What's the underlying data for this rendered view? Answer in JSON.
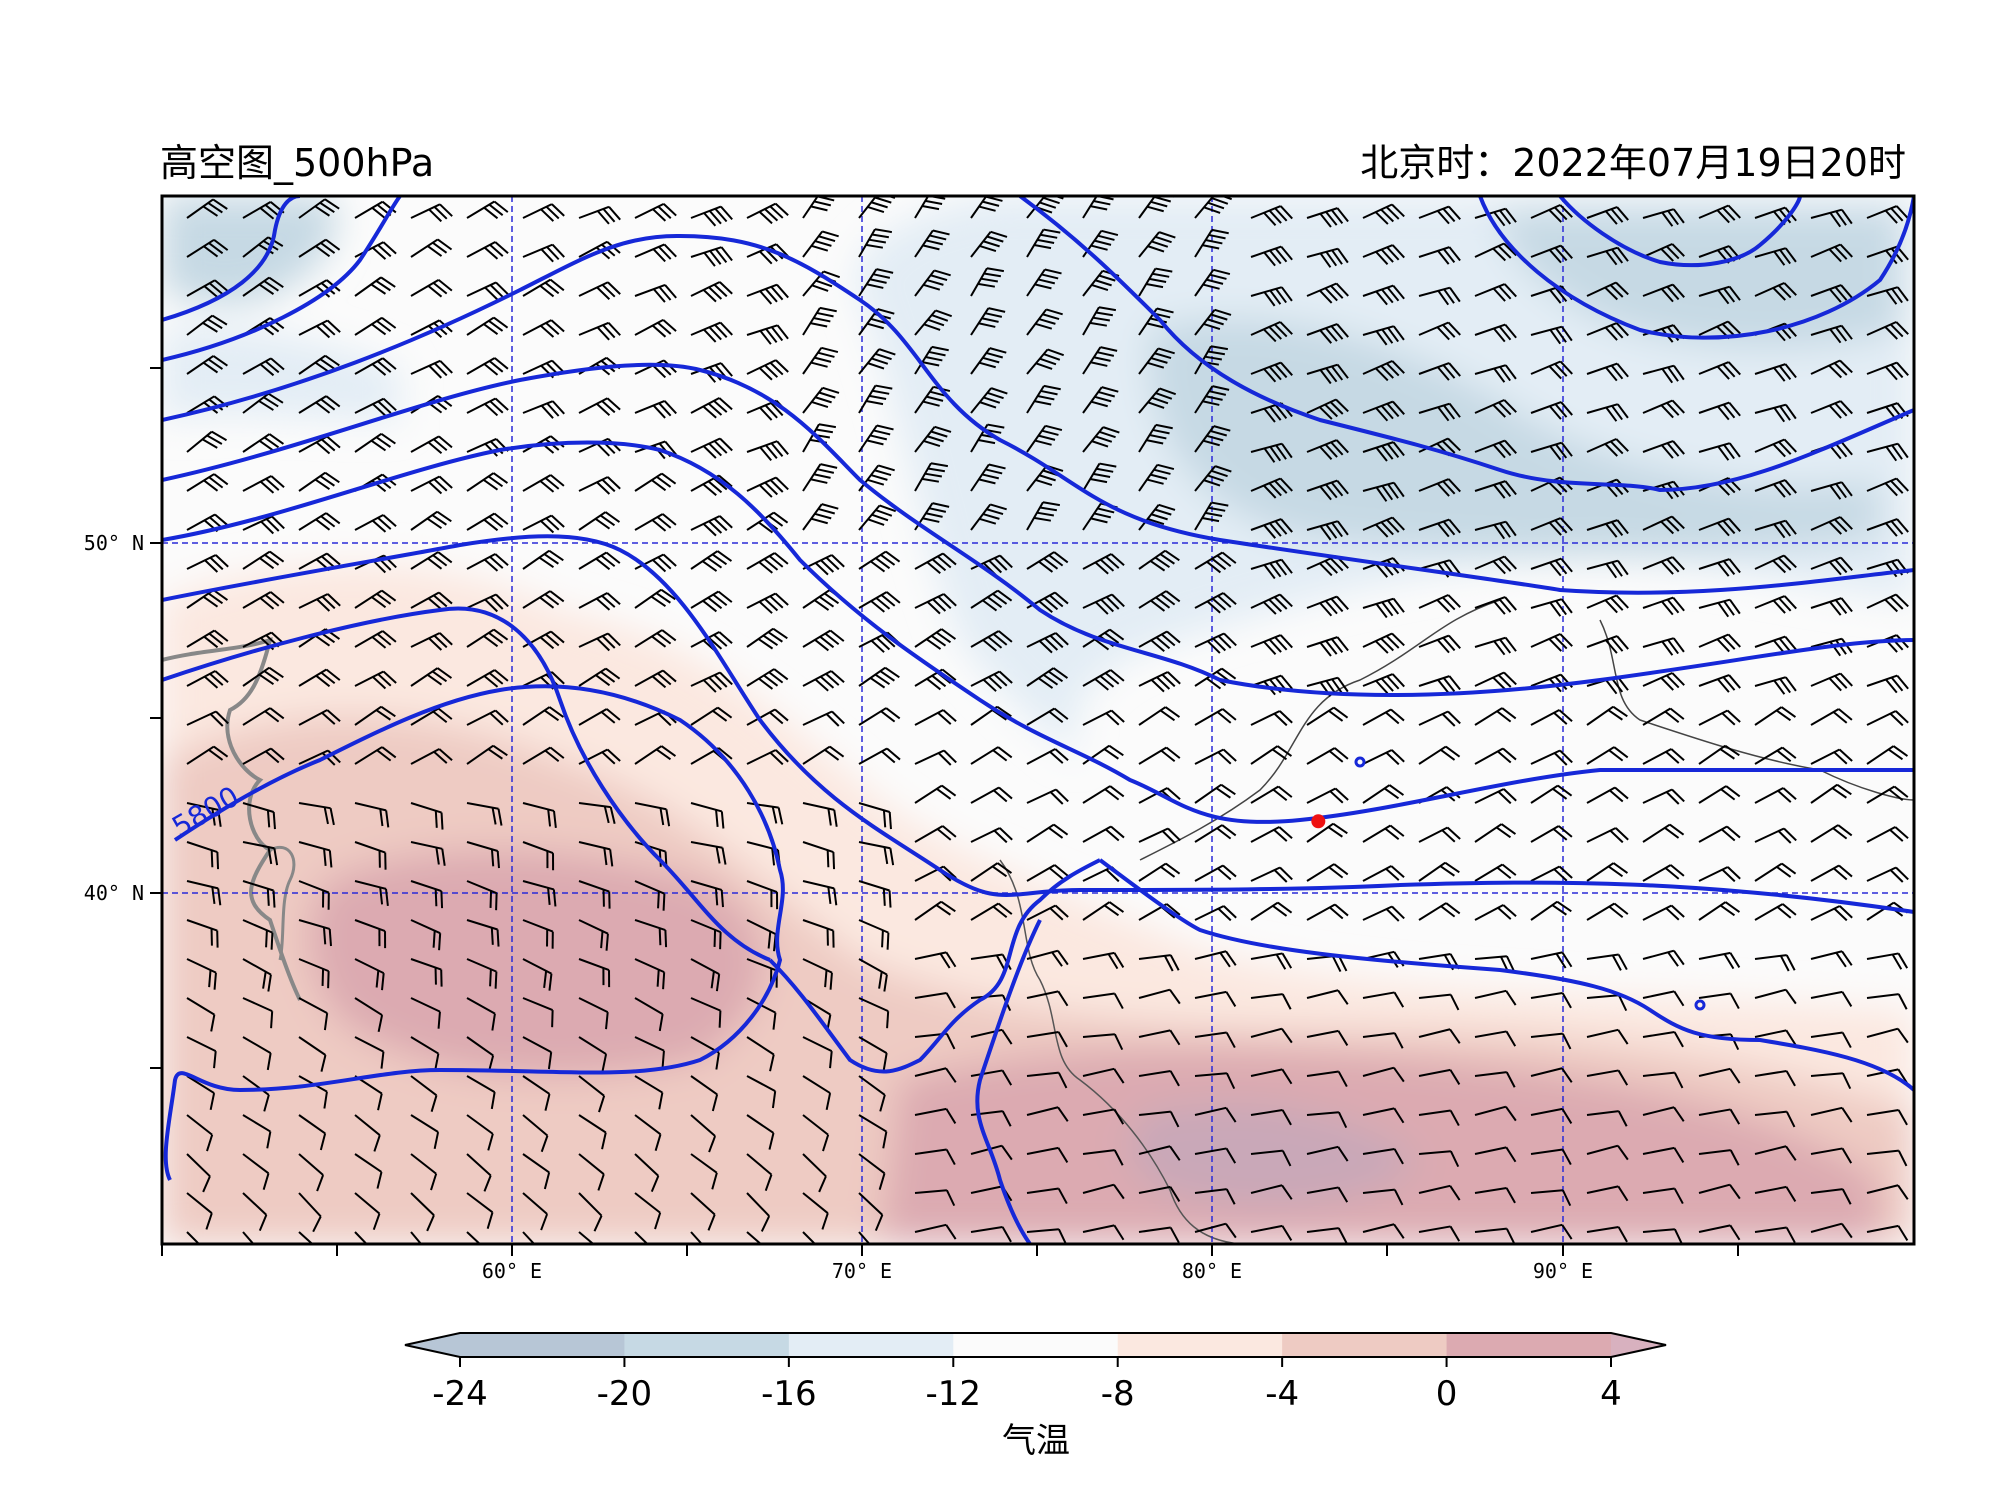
{
  "title": "高空图_500hPa",
  "time": "北京时：2022年07月19日20时",
  "contour_label": "5800",
  "colorbar": {
    "title": "气温",
    "ticks": [
      "-24",
      "-20",
      "-16",
      "-12",
      "-8",
      "-4",
      "0",
      "4"
    ],
    "colors": [
      "#b7c6d6",
      "#c6d9e4",
      "#e3edf5",
      "#fbfbfb",
      "#fbe8e0",
      "#eecbc3",
      "#dcaab1"
    ],
    "extend_low_color": "#b7c6d6",
    "extend_high_color": "#d8b1bf"
  },
  "axes": {
    "lon_labels": [
      "60° E",
      "70° E",
      "80° E",
      "90° E"
    ],
    "lat_labels": [
      "50° N",
      "40° N"
    ]
  },
  "map": {
    "lon_range": [
      50,
      100
    ],
    "lat_range": [
      30,
      60
    ],
    "station_marker": {
      "lon": 83,
      "lat": 42.1,
      "color": "#ee1111"
    },
    "contour_color": "#1628d8",
    "gridline_color": "#2a2ad8"
  }
}
